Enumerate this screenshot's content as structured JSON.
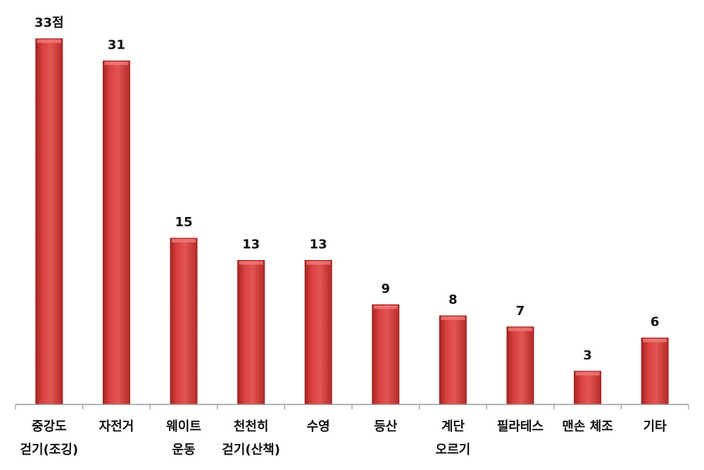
{
  "chart_data": {
    "type": "bar",
    "categories": [
      [
        "중강도",
        "걷기(조깅)"
      ],
      [
        "자전거"
      ],
      [
        "웨이트",
        "운동"
      ],
      [
        "천천히",
        "걷기(산책)"
      ],
      [
        "수영"
      ],
      [
        "등산"
      ],
      [
        "계단",
        "오르기"
      ],
      [
        "필라테스"
      ],
      [
        "맨손 체조"
      ],
      [
        "기타"
      ]
    ],
    "values": [
      33,
      31,
      15,
      13,
      13,
      9,
      8,
      7,
      3,
      6
    ],
    "data_labels": [
      "33점",
      "31",
      "15",
      "13",
      "13",
      "9",
      "8",
      "7",
      "3",
      "6"
    ],
    "ylim": [
      0,
      33
    ],
    "grid": false,
    "legend": "none",
    "colors": {
      "bar": "#d9413f",
      "bar_dark": "#9e1f1e",
      "axis": "#9a9a9a"
    }
  }
}
